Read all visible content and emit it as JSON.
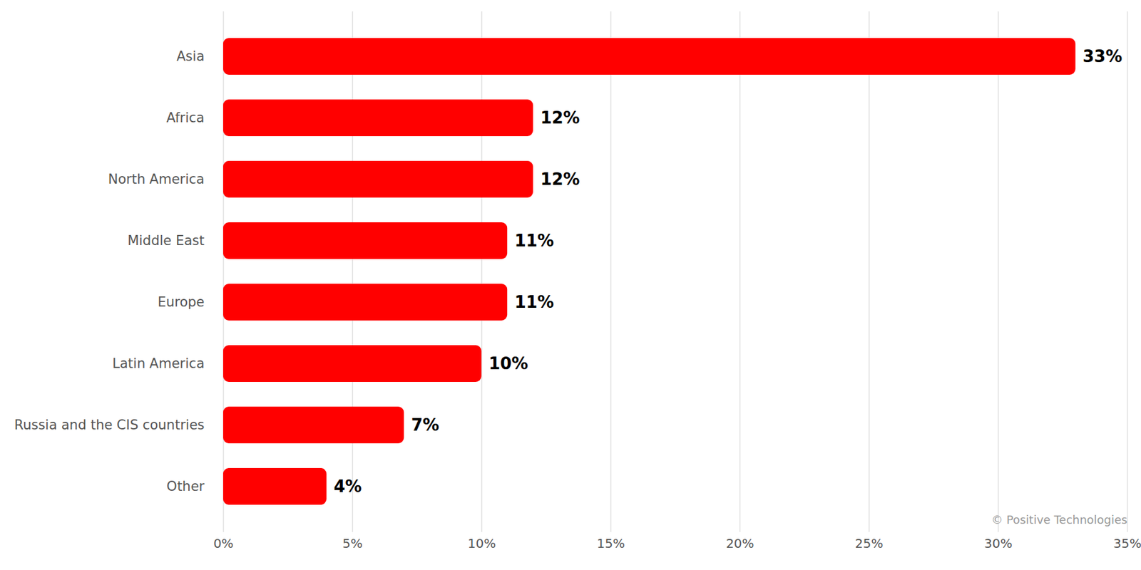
{
  "chart_data": {
    "type": "bar",
    "orientation": "horizontal",
    "categories": [
      "Asia",
      "Africa",
      "North America",
      "Middle East",
      "Europe",
      "Latin America",
      "Russia and the CIS countries",
      "Other"
    ],
    "values": [
      33,
      12,
      12,
      11,
      11,
      10,
      7,
      4
    ],
    "value_labels": [
      "33%",
      "12%",
      "12%",
      "11%",
      "11%",
      "10%",
      "7%",
      "4%"
    ],
    "color": "#ff0000",
    "xlim": [
      0,
      35
    ],
    "xticks": [
      {
        "value": 0,
        "label": "0%"
      },
      {
        "value": 5,
        "label": "5%"
      },
      {
        "value": 10,
        "label": "10%"
      },
      {
        "value": 15,
        "label": "15%"
      },
      {
        "value": 20,
        "label": "20%"
      },
      {
        "value": 25,
        "label": "25%"
      },
      {
        "value": 30,
        "label": "30%"
      },
      {
        "value": 35,
        "label": "35%"
      }
    ],
    "grid": true,
    "data_labels": true,
    "caption": "© Positive Technologies"
  }
}
